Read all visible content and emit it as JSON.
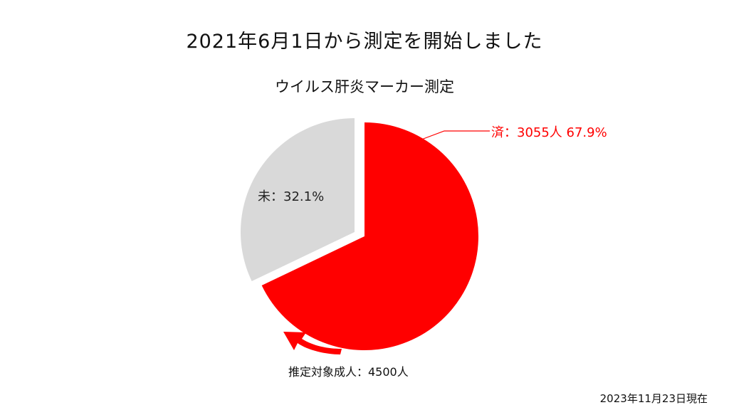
{
  "page": {
    "heading": "2021年6月1日から測定を開始しました",
    "subheading": "ウイルス肝炎マーカー測定",
    "target_label": "推定対象成人：4500人",
    "as_of": "2023年11月23日現在"
  },
  "chart_data": {
    "type": "pie",
    "title": "ウイルス肝炎マーカー測定",
    "slices": [
      {
        "label": "済：3055人 67.9%",
        "category": "済",
        "value": 67.9,
        "count": 3055,
        "color": "#ff0000"
      },
      {
        "label": "未：32.1%",
        "category": "未",
        "value": 32.1,
        "color": "#d9d9d9"
      }
    ],
    "total_label": "推定対象成人：4500人",
    "total": 4500
  }
}
